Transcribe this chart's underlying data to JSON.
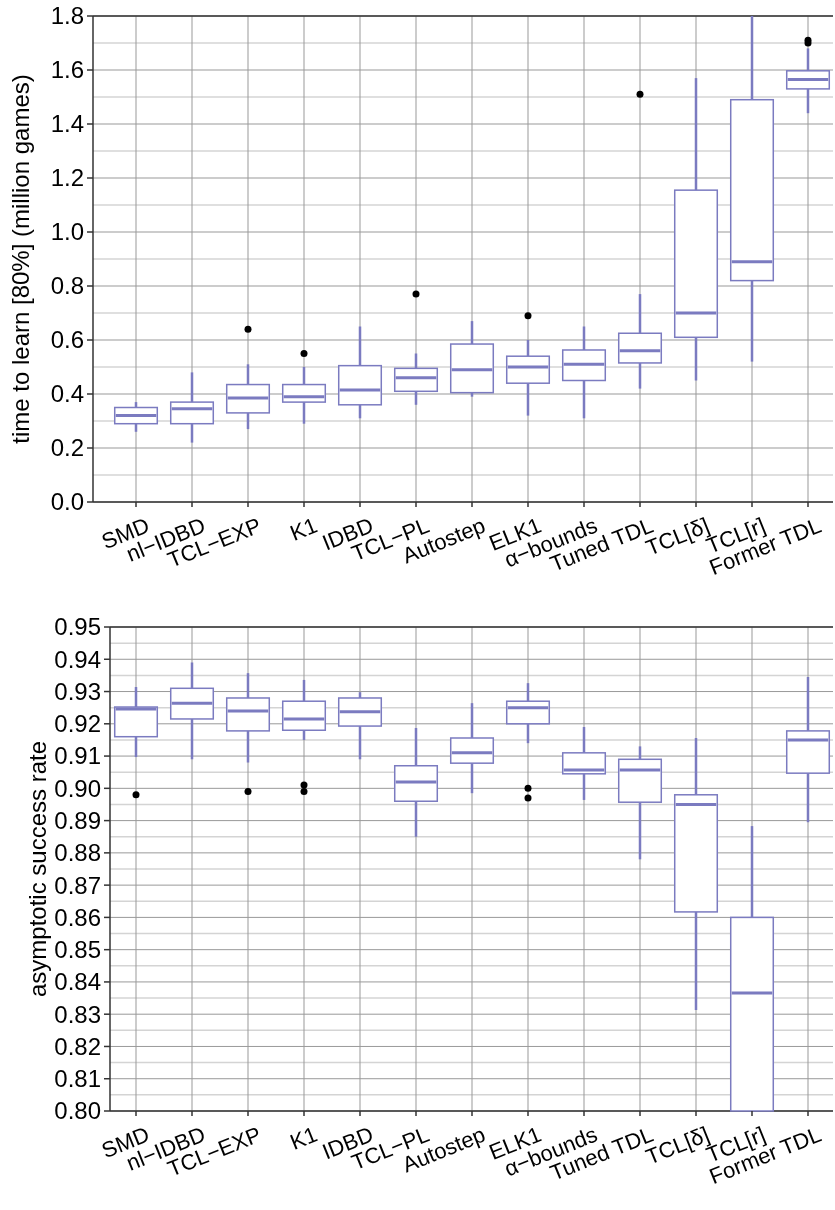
{
  "chart_data": [
    {
      "type": "box",
      "ylabel": "time to learn [80%] (million games)",
      "categories": [
        "SMD",
        "nl−IDBD",
        "TCL−EXP",
        "K1",
        "IDBD",
        "TCL−PL",
        "Autostep",
        "ELK1",
        "α−bounds",
        "Tuned TDL",
        "TCL[δ]",
        "TCL[r]",
        "Former TDL"
      ],
      "ylim": [
        0,
        1.8
      ],
      "yticks": [
        {
          "value": 0,
          "label": "0.0"
        },
        0.2,
        0.4,
        0.6,
        0.8,
        {
          "value": 1,
          "label": "1.0"
        },
        1.2,
        1.4,
        1.6,
        1.8
      ],
      "grid": true,
      "series": [
        {
          "color": "#7b7bc0",
          "boxes": [
            {
              "low": 0.26,
              "q1": 0.29,
              "median": 0.32,
              "q3": 0.35,
              "high": 0.37
            },
            {
              "low": 0.22,
              "q1": 0.29,
              "median": 0.345,
              "q3": 0.37,
              "high": 0.48
            },
            {
              "low": 0.27,
              "q1": 0.33,
              "median": 0.385,
              "q3": 0.435,
              "high": 0.51,
              "outliers": [
                0.64
              ]
            },
            {
              "low": 0.29,
              "q1": 0.37,
              "median": 0.39,
              "q3": 0.435,
              "high": 0.5,
              "outliers": [
                0.55
              ]
            },
            {
              "low": 0.31,
              "q1": 0.36,
              "median": 0.415,
              "q3": 0.505,
              "high": 0.65
            },
            {
              "low": 0.36,
              "q1": 0.41,
              "median": 0.46,
              "q3": 0.495,
              "high": 0.55,
              "outliers": [
                0.77
              ]
            },
            {
              "low": 0.39,
              "q1": 0.405,
              "median": 0.49,
              "q3": 0.585,
              "high": 0.67
            },
            {
              "low": 0.32,
              "q1": 0.44,
              "median": 0.5,
              "q3": 0.54,
              "high": 0.6,
              "outliers": [
                0.69
              ]
            },
            {
              "low": 0.31,
              "q1": 0.45,
              "median": 0.51,
              "q3": 0.563,
              "high": 0.65
            },
            {
              "low": 0.42,
              "q1": 0.515,
              "median": 0.56,
              "q3": 0.625,
              "high": 0.77,
              "outliers": [
                1.51
              ]
            },
            {
              "low": 0.45,
              "q1": 0.61,
              "median": 0.7,
              "q3": 1.155,
              "high": 1.57
            },
            {
              "low": 0.52,
              "q1": 0.82,
              "median": 0.89,
              "q3": 1.49,
              "high": 1.8
            },
            {
              "low": 1.44,
              "q1": 1.53,
              "median": 1.565,
              "q3": 1.597,
              "high": 1.68,
              "outliers": [
                1.7,
                1.71
              ]
            }
          ]
        }
      ]
    },
    {
      "type": "box",
      "ylabel": "asymptotic success rate",
      "categories": [
        "SMD",
        "nl−IDBD",
        "TCL−EXP",
        "K1",
        "IDBD",
        "TCL−PL",
        "Autostep",
        "ELK1",
        "α−bounds",
        "Tuned TDL",
        "TCL[δ]",
        "TCL[r]",
        "Former TDL"
      ],
      "ylim": [
        0.8,
        0.95
      ],
      "yticks": [
        {
          "value": 0.8,
          "label": "0.80"
        },
        0.81,
        0.82,
        0.83,
        0.84,
        0.85,
        0.86,
        0.87,
        0.88,
        0.89,
        {
          "value": 0.9,
          "label": "0.90"
        },
        0.91,
        0.92,
        0.93,
        0.94,
        0.95
      ],
      "grid": true,
      "series": [
        {
          "color": "#7b7bc0",
          "boxes": [
            {
              "low": 0.9097,
              "q1": 0.916,
              "median": 0.9246,
              "q3": 0.9252,
              "high": 0.9314,
              "outliers": [
                0.898
              ]
            },
            {
              "low": 0.909,
              "q1": 0.9215,
              "median": 0.9264,
              "q3": 0.931,
              "high": 0.939
            },
            {
              "low": 0.908,
              "q1": 0.9178,
              "median": 0.924,
              "q3": 0.928,
              "high": 0.9357,
              "outliers": [
                0.899
              ]
            },
            {
              "low": 0.915,
              "q1": 0.918,
              "median": 0.9215,
              "q3": 0.927,
              "high": 0.9336,
              "outliers": [
                0.901,
                0.899
              ]
            },
            {
              "low": 0.909,
              "q1": 0.9193,
              "median": 0.9237,
              "q3": 0.928,
              "high": 0.9298
            },
            {
              "low": 0.885,
              "q1": 0.896,
              "median": 0.902,
              "q3": 0.907,
              "high": 0.9187
            },
            {
              "low": 0.8985,
              "q1": 0.9078,
              "median": 0.911,
              "q3": 0.9156,
              "high": 0.9264
            },
            {
              "low": 0.914,
              "q1": 0.92,
              "median": 0.925,
              "q3": 0.927,
              "high": 0.9326,
              "outliers": [
                0.9,
                0.897
              ]
            },
            {
              "low": 0.8964,
              "q1": 0.9045,
              "median": 0.9057,
              "q3": 0.911,
              "high": 0.919
            },
            {
              "low": 0.878,
              "q1": 0.8957,
              "median": 0.9057,
              "q3": 0.909,
              "high": 0.913
            },
            {
              "low": 0.8313,
              "q1": 0.8617,
              "median": 0.895,
              "q3": 0.898,
              "high": 0.9156
            },
            {
              "low": 0.8,
              "q1": 0.8,
              "median": 0.8366,
              "q3": 0.86,
              "high": 0.8883
            },
            {
              "low": 0.8895,
              "q1": 0.9047,
              "median": 0.915,
              "q3": 0.9178,
              "high": 0.9345
            }
          ]
        }
      ]
    }
  ]
}
